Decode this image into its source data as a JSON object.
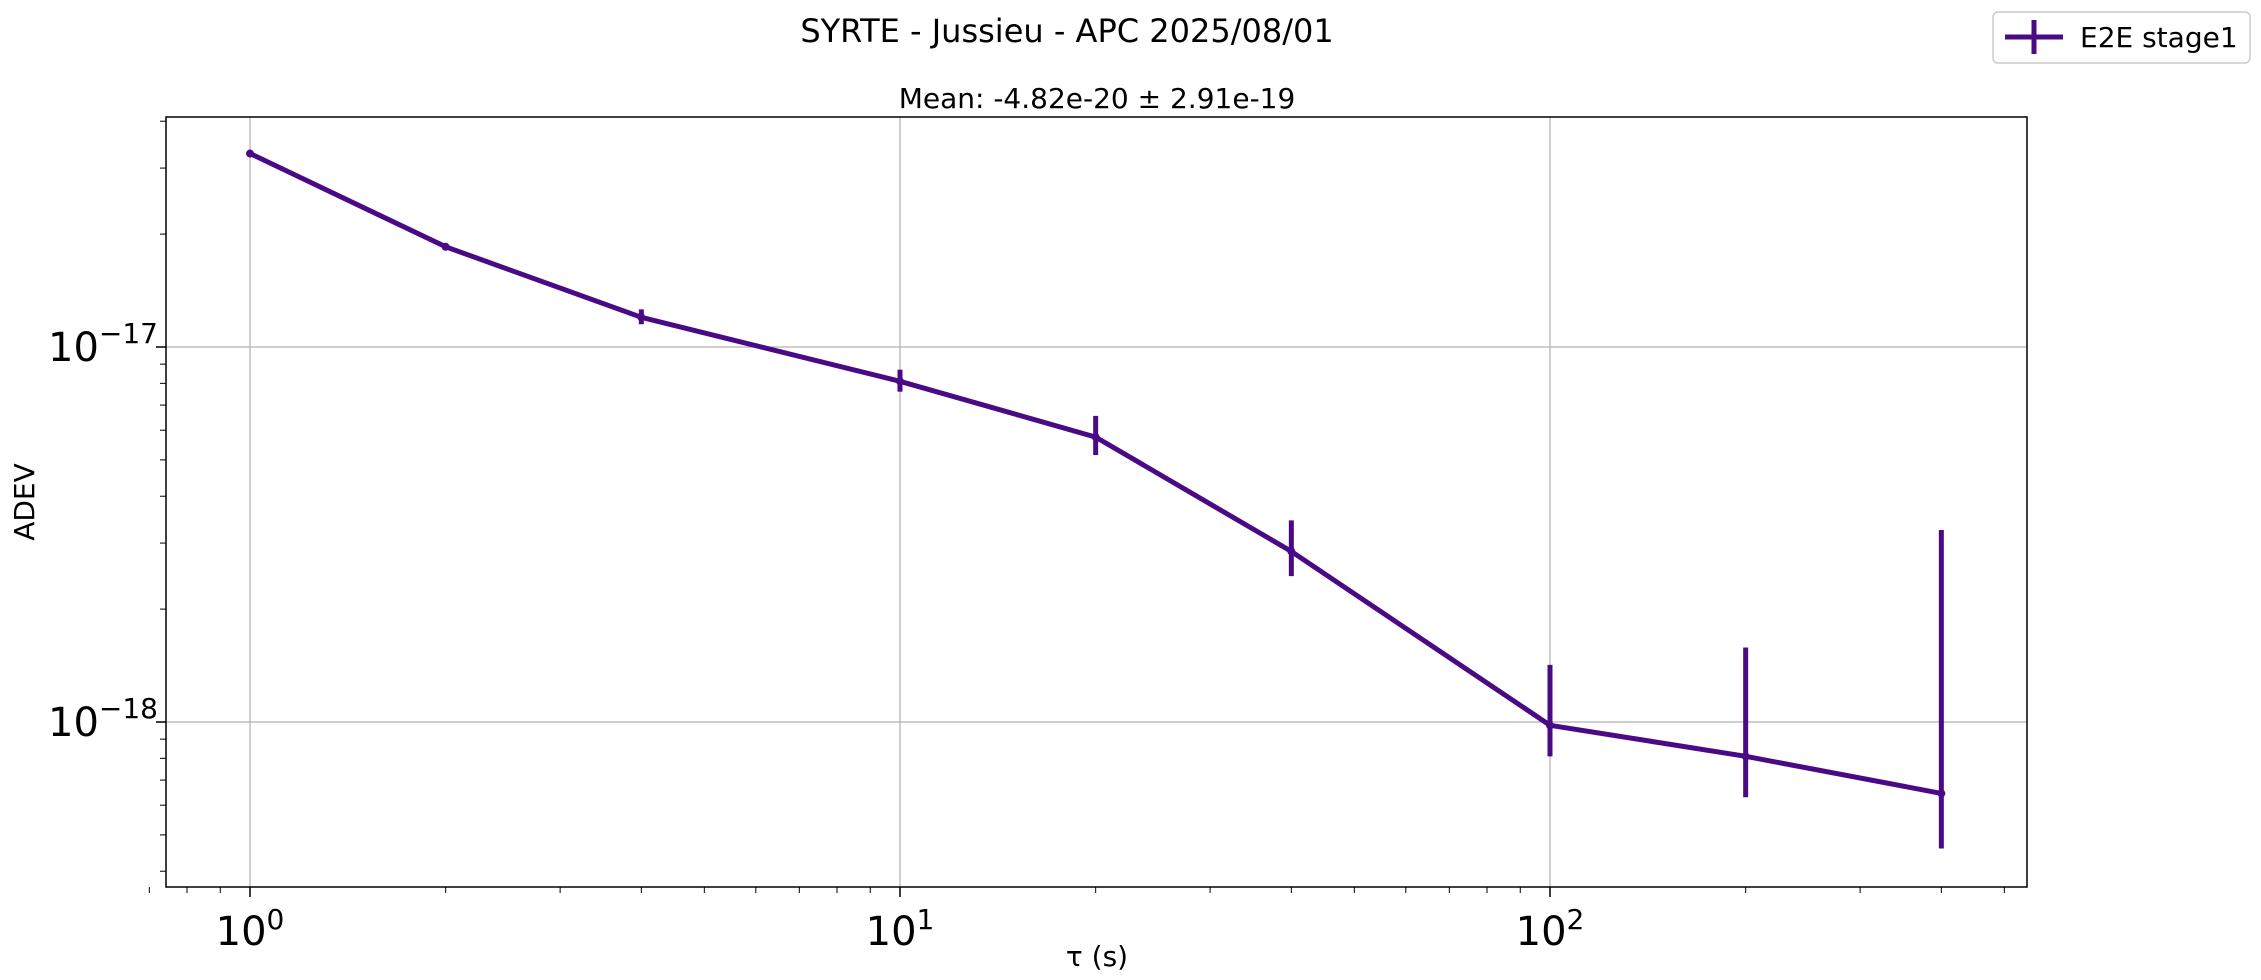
{
  "chart_data": {
    "type": "line",
    "suptitle": "SYRTE - Jussieu - APC 2025/08/01",
    "title": "Mean: -4.82e-20 ± 2.91e-19",
    "xlabel": "τ (s)",
    "ylabel": "ADEV",
    "xscale": "log",
    "yscale": "log",
    "xlim": [
      0.7,
      500
    ],
    "ylim": [
      4e-19,
      4e-17
    ],
    "grid": true,
    "legend_position": "top-right (outside axes)",
    "x_tick_labels": [
      {
        "value": 1,
        "base": "10",
        "exp": "0"
      },
      {
        "value": 10,
        "base": "10",
        "exp": "1"
      },
      {
        "value": 100,
        "base": "10",
        "exp": "2"
      }
    ],
    "y_tick_labels": [
      {
        "value": 1e-17,
        "base": "10",
        "exp": "−17"
      },
      {
        "value": 1e-18,
        "base": "10",
        "exp": "−18"
      }
    ],
    "series": [
      {
        "name": "E2E stage1",
        "color": "#4b0a85",
        "x": [
          1,
          2,
          4,
          10,
          20,
          40,
          100,
          200,
          400
        ],
        "y": [
          3.28e-17,
          1.85e-17,
          1.2e-17,
          8.1e-18,
          5.75e-18,
          2.85e-18,
          9.8e-19,
          8.1e-19,
          6.45e-19
        ],
        "y_lower": [
          3.24e-17,
          1.82e-17,
          1.15e-17,
          7.6e-18,
          5.15e-18,
          2.45e-18,
          8.1e-19,
          6.3e-19,
          4.6e-19
        ],
        "y_upper": [
          3.32e-17,
          1.88e-17,
          1.26e-17,
          8.7e-18,
          6.55e-18,
          3.45e-18,
          1.42e-18,
          1.58e-18,
          3.25e-18
        ]
      }
    ]
  }
}
